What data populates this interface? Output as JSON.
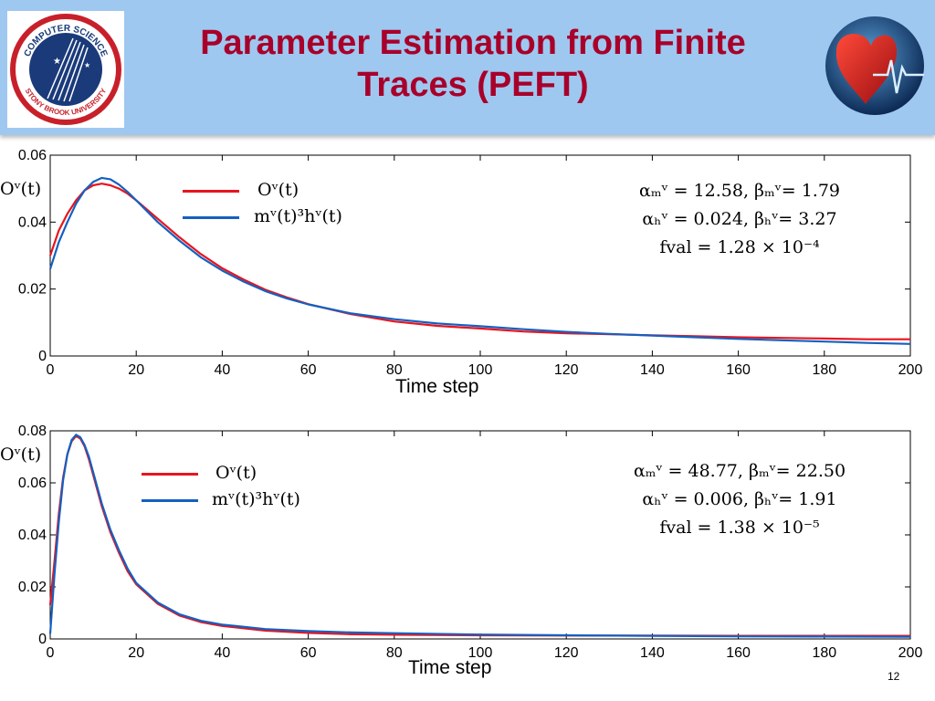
{
  "slide": {
    "title_line1": "Parameter Estimation from Finite",
    "title_line2": "Traces (PEFT)",
    "page_number": "12",
    "logo": {
      "name": "computer-science-stony-brook-logo",
      "text_top": "COMPUTER SCIENCE",
      "text_bottom": "STONY BROOK UNIVERSITY"
    },
    "heart_image": "heart-ecg-icon"
  },
  "chart_data": [
    {
      "type": "line",
      "xlabel": "Time step",
      "ylabel": "Oᵛ(t)",
      "xlim": [
        0,
        200
      ],
      "ylim": [
        0,
        0.06
      ],
      "xticks": [
        "0",
        "20",
        "40",
        "60",
        "80",
        "100",
        "120",
        "140",
        "160",
        "180",
        "200"
      ],
      "yticks": [
        "0",
        "0.02",
        "0.04",
        "0.06"
      ],
      "x": [
        0,
        2,
        4,
        6,
        8,
        10,
        12,
        14,
        16,
        18,
        20,
        25,
        30,
        35,
        40,
        45,
        50,
        55,
        60,
        70,
        80,
        90,
        100,
        110,
        120,
        130,
        140,
        150,
        160,
        170,
        180,
        190,
        200
      ],
      "series": [
        {
          "name": "Oᵛ(t)",
          "color": "#e8141e",
          "values": [
            0.03,
            0.0375,
            0.0425,
            0.0465,
            0.0495,
            0.051,
            0.0515,
            0.051,
            0.05,
            0.0485,
            0.0465,
            0.041,
            0.0355,
            0.0305,
            0.0262,
            0.0228,
            0.0198,
            0.0175,
            0.0155,
            0.0125,
            0.0103,
            0.009,
            0.0082,
            0.0073,
            0.0068,
            0.0065,
            0.0062,
            0.0059,
            0.0056,
            0.0054,
            0.0052,
            0.005,
            0.005
          ]
        },
        {
          "name": "mᵛ(t)³hᵛ(t)",
          "color": "#1560c0",
          "values": [
            0.026,
            0.034,
            0.04,
            0.0455,
            0.0495,
            0.052,
            0.0532,
            0.0528,
            0.0512,
            0.049,
            0.0465,
            0.04,
            0.0345,
            0.0295,
            0.0255,
            0.0222,
            0.0194,
            0.0172,
            0.0154,
            0.0127,
            0.011,
            0.0097,
            0.0089,
            0.008,
            0.0072,
            0.0066,
            0.0061,
            0.0056,
            0.0051,
            0.0047,
            0.0043,
            0.0039,
            0.0036
          ]
        }
      ],
      "annotation": {
        "line1": "αₘᵛ = 12.58, βₘᵛ= 1.79",
        "line2": "αₕᵛ = 0.024,  βₕᵛ= 3.27",
        "line3": "fval = 1.28  ×  10⁻⁴"
      },
      "grid": false,
      "legend_position": "top-left"
    },
    {
      "type": "line",
      "xlabel": "Time step",
      "ylabel": "Oᵛ(t)",
      "xlim": [
        0,
        200
      ],
      "ylim": [
        0,
        0.08
      ],
      "xticks": [
        "0",
        "20",
        "40",
        "60",
        "80",
        "100",
        "120",
        "140",
        "160",
        "180",
        "200"
      ],
      "yticks": [
        "0",
        "0.02",
        "0.04",
        "0.06",
        "0.08"
      ],
      "x": [
        0,
        1,
        2,
        3,
        4,
        5,
        6,
        7,
        8,
        9,
        10,
        12,
        14,
        16,
        18,
        20,
        25,
        30,
        35,
        40,
        50,
        60,
        70,
        80,
        100,
        120,
        140,
        160,
        180,
        200
      ],
      "series": [
        {
          "name": "Oᵛ(t)",
          "color": "#e8141e",
          "values": [
            0.013,
            0.03,
            0.048,
            0.062,
            0.071,
            0.076,
            0.078,
            0.077,
            0.074,
            0.069,
            0.063,
            0.051,
            0.041,
            0.033,
            0.026,
            0.021,
            0.0135,
            0.009,
            0.0065,
            0.005,
            0.0032,
            0.0023,
            0.0018,
            0.0016,
            0.0014,
            0.0013,
            0.0013,
            0.0012,
            0.0012,
            0.0012
          ]
        },
        {
          "name": "mᵛ(t)³hᵛ(t)",
          "color": "#1560c0",
          "values": [
            0.002,
            0.025,
            0.045,
            0.061,
            0.071,
            0.0765,
            0.0785,
            0.0775,
            0.0745,
            0.07,
            0.064,
            0.052,
            0.042,
            0.034,
            0.027,
            0.0215,
            0.014,
            0.0095,
            0.007,
            0.0055,
            0.0038,
            0.003,
            0.0025,
            0.0022,
            0.0017,
            0.0014,
            0.0012,
            0.001,
            0.0009,
            0.0008
          ]
        }
      ],
      "annotation": {
        "line1": "αₘᵛ = 48.77, βₘᵛ= 22.50",
        "line2": "αₕᵛ = 0.006,  βₕᵛ= 1.91",
        "line3": "fval = 1.38  ×  10⁻⁵"
      },
      "grid": false,
      "legend_position": "top-left"
    }
  ]
}
